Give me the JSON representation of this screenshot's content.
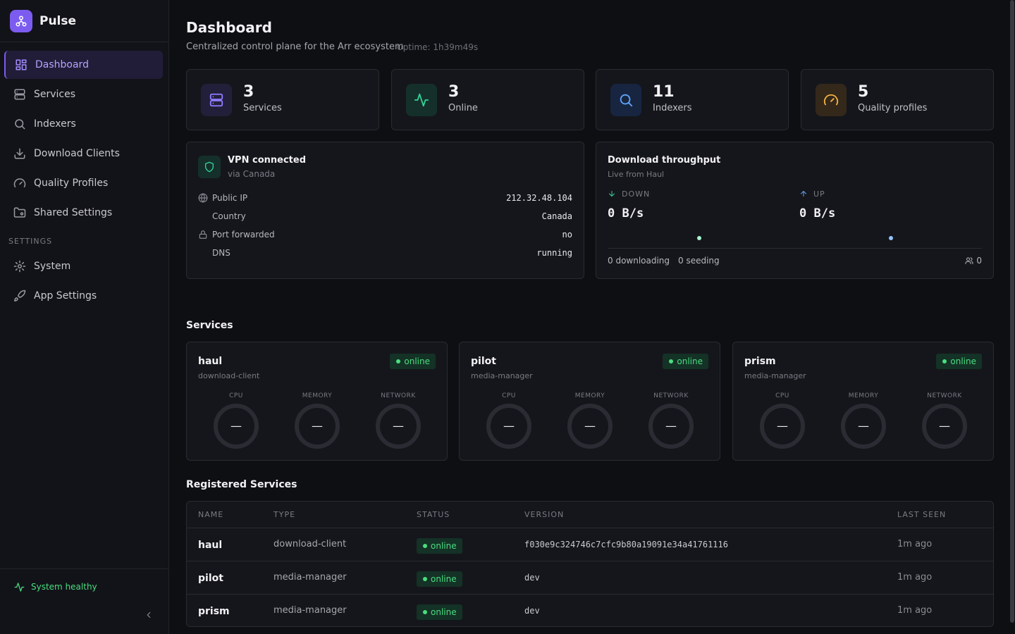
{
  "sidebar": {
    "brand": "Pulse",
    "nav": [
      "Dashboard",
      "Services",
      "Indexers",
      "Download Clients",
      "Quality Profiles",
      "Shared Settings"
    ],
    "settings_heading": "SETTINGS",
    "settings_nav": [
      "System",
      "App Settings"
    ],
    "status": "System healthy"
  },
  "header": {
    "title": "Dashboard",
    "subtitle": "Centralized control plane for the Arr ecosystem",
    "uptime": "Uptime: 1h39m49s"
  },
  "stats": [
    {
      "value": 3,
      "label": "Services"
    },
    {
      "value": 3,
      "label": "Online"
    },
    {
      "value": 11,
      "label": "Indexers"
    },
    {
      "value": 5,
      "label": "Quality profiles"
    }
  ],
  "vpn": {
    "title": "VPN connected",
    "subtitle": "via Canada",
    "rows": [
      {
        "label": "Public IP",
        "value": "212.32.48.104"
      },
      {
        "label": "Country",
        "value": "Canada"
      },
      {
        "label": "Port forwarded",
        "value": "no"
      },
      {
        "label": "DNS",
        "value": "running"
      }
    ]
  },
  "throughput": {
    "title": "Download throughput",
    "subtitle": "Live from Haul",
    "down_label": "DOWN",
    "down_value": "0 B/s",
    "up_label": "UP",
    "up_value": "0 B/s",
    "downloading": "0 downloading",
    "seeding": "0 seeding",
    "peers": "0"
  },
  "services": {
    "title": "Services",
    "cards": [
      {
        "name": "haul",
        "type": "download-client",
        "status": "online",
        "metrics": [
          {
            "label": "CPU",
            "value": "—"
          },
          {
            "label": "MEMORY",
            "value": "—"
          },
          {
            "label": "NETWORK",
            "value": "—"
          }
        ]
      },
      {
        "name": "pilot",
        "type": "media-manager",
        "status": "online",
        "metrics": [
          {
            "label": "CPU",
            "value": "—"
          },
          {
            "label": "MEMORY",
            "value": "—"
          },
          {
            "label": "NETWORK",
            "value": "—"
          }
        ]
      },
      {
        "name": "prism",
        "type": "media-manager",
        "status": "online",
        "metrics": [
          {
            "label": "CPU",
            "value": "—"
          },
          {
            "label": "MEMORY",
            "value": "—"
          },
          {
            "label": "NETWORK",
            "value": "—"
          }
        ]
      }
    ]
  },
  "registered": {
    "title": "Registered Services",
    "columns": [
      "NAME",
      "TYPE",
      "STATUS",
      "VERSION",
      "LAST SEEN"
    ],
    "rows": [
      [
        "haul",
        "download-client",
        "online",
        "f030e9c324746c7cfc9b80a19091e34a41761116",
        "1m ago"
      ],
      [
        "pilot",
        "media-manager",
        "online",
        "dev",
        "1m ago"
      ],
      [
        "prism",
        "media-manager",
        "online",
        "dev",
        "1m ago"
      ]
    ]
  }
}
